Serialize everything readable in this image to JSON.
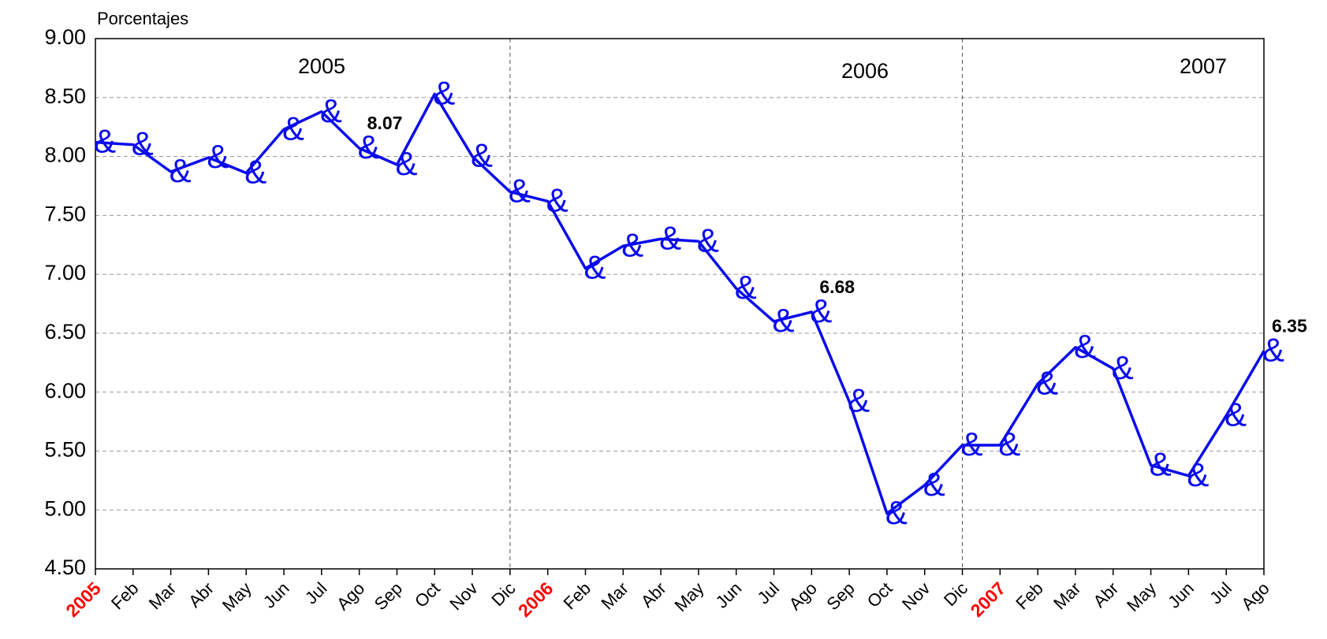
{
  "chart_data": {
    "type": "line",
    "y_axis_label": "Porcentajes",
    "year_labels": [
      "2005",
      "2006",
      "2007"
    ],
    "categories": [
      "2005",
      "Feb",
      "Mar",
      "Abr",
      "May",
      "Jun",
      "Jul",
      "Ago",
      "Sep",
      "Oct",
      "Nov",
      "Dic",
      "2006",
      "Feb",
      "Mar",
      "Abr",
      "May",
      "Jun",
      "Jul",
      "Ago",
      "Sep",
      "Oct",
      "Nov",
      "Dic",
      "2007",
      "Feb",
      "Mar",
      "Abr",
      "May",
      "Jun",
      "Jul",
      "Ago"
    ],
    "series": [
      {
        "color": "#0a0aee",
        "marker": "&",
        "values": [
          8.12,
          8.1,
          7.87,
          7.99,
          7.86,
          8.23,
          8.38,
          8.07,
          7.93,
          8.53,
          8.0,
          7.7,
          7.62,
          7.05,
          7.24,
          7.3,
          7.28,
          6.88,
          6.6,
          6.68,
          5.92,
          4.97,
          5.21,
          5.55,
          5.55,
          6.07,
          6.38,
          6.2,
          5.38,
          5.29,
          5.8,
          6.35
        ],
        "value_labels": [
          null,
          null,
          null,
          null,
          null,
          null,
          null,
          "8.07",
          null,
          null,
          null,
          null,
          null,
          null,
          null,
          null,
          null,
          null,
          null,
          "6.68",
          null,
          null,
          null,
          null,
          null,
          null,
          null,
          null,
          null,
          null,
          null,
          "6.35"
        ]
      }
    ],
    "ylim": [
      4.5,
      9
    ],
    "yticks": [
      {
        "value": 4.5,
        "label": "4.50"
      },
      {
        "value": 5,
        "label": "5.00"
      },
      {
        "value": 5.5,
        "label": "5.50"
      },
      {
        "value": 6,
        "label": "6.00"
      },
      {
        "value": 6.5,
        "label": "6.50"
      },
      {
        "value": 7,
        "label": "7.00"
      },
      {
        "value": 7.5,
        "label": "7.50"
      },
      {
        "value": 8,
        "label": "8.00"
      },
      {
        "value": 8.5,
        "label": "8.50"
      },
      {
        "value": 9,
        "label": "9.00"
      }
    ],
    "grid": true,
    "year_color": "#ff0000"
  }
}
